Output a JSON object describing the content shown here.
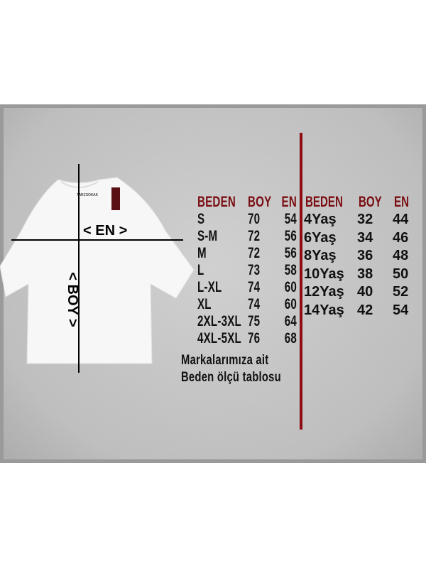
{
  "adult_table": {
    "headers": [
      "BEDEN",
      "BOY",
      "EN"
    ],
    "rows": [
      [
        "S",
        "70",
        "54"
      ],
      [
        "S-M",
        "72",
        "56"
      ],
      [
        "M",
        "72",
        "56"
      ],
      [
        "L",
        "73",
        "58"
      ],
      [
        "L-XL",
        "74",
        "60"
      ],
      [
        "XL",
        "74",
        "60"
      ],
      [
        "2XL-3XL",
        "75",
        "64"
      ],
      [
        "4XL-5XL",
        "76",
        "68"
      ]
    ]
  },
  "kids_table": {
    "headers": [
      "BEDEN",
      "BOY",
      "EN"
    ],
    "rows": [
      [
        "4Yaş",
        "32",
        "44"
      ],
      [
        "6Yaş",
        "34",
        "46"
      ],
      [
        "8Yaş",
        "36",
        "48"
      ],
      [
        "10Yaş",
        "38",
        "50"
      ],
      [
        "12Yaş",
        "40",
        "52"
      ],
      [
        "14Yaş",
        "42",
        "54"
      ]
    ]
  },
  "footer": {
    "line1": "Markalarımıza ait",
    "line2": "Beden ölçü tablosu"
  },
  "shirt": {
    "en_label": "< EN >",
    "boy_label": "< BOY >",
    "brand_tag": "TARZSOKAK"
  },
  "colors": {
    "header": "#7a0d12",
    "divider": "#8e0c10",
    "panel": "#c4c4c4"
  }
}
